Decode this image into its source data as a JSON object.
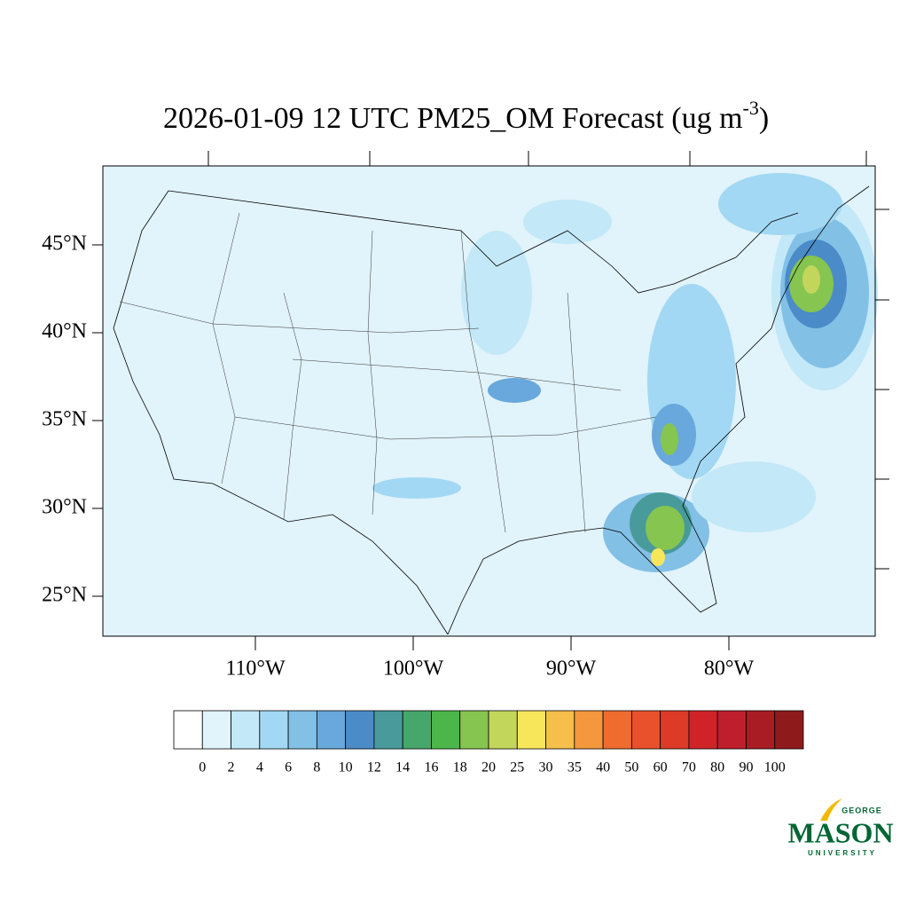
{
  "title": {
    "text": "2026-01-09 12 UTC PM25_OM Forecast (ug m",
    "superscript": "-3",
    "suffix": ")"
  },
  "map": {
    "lat_ticks": [
      {
        "value": 45,
        "label": "45°N"
      },
      {
        "value": 40,
        "label": "40°N"
      },
      {
        "value": 35,
        "label": "35°N"
      },
      {
        "value": 30,
        "label": "30°N"
      },
      {
        "value": 25,
        "label": "25°N"
      }
    ],
    "lon_ticks": [
      {
        "value": -110,
        "label": "110°W"
      },
      {
        "value": -100,
        "label": "100°W"
      },
      {
        "value": -90,
        "label": "90°W"
      },
      {
        "value": -80,
        "label": "80°W"
      }
    ]
  },
  "colorbar": {
    "levels": [
      0,
      2,
      4,
      6,
      8,
      10,
      12,
      14,
      16,
      18,
      20,
      25,
      30,
      35,
      40,
      50,
      60,
      70,
      80,
      90,
      100
    ],
    "colors": [
      "#ffffff",
      "#e1f3fb",
      "#c3e8f7",
      "#a2d8f3",
      "#82c0e6",
      "#68a8dc",
      "#4a8bc8",
      "#489b9a",
      "#47a66c",
      "#4cb64a",
      "#86c54f",
      "#c3d65c",
      "#f8e65a",
      "#f6be4a",
      "#f4973d",
      "#ef6c2e",
      "#e9512c",
      "#dd3a27",
      "#d02328",
      "#bf1e2d",
      "#a91c23",
      "#8e1a1b"
    ]
  },
  "logo": {
    "top": "GEORGE",
    "main": "MASON",
    "bottom": "UNIVERSITY"
  }
}
